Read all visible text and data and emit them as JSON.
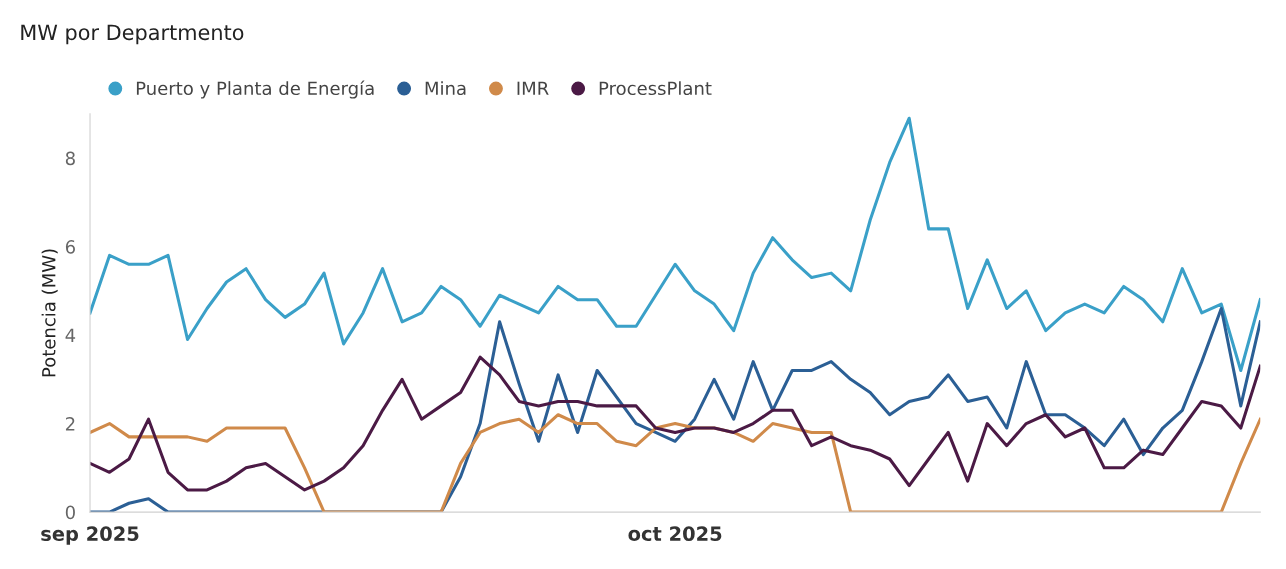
{
  "chart_data": {
    "type": "line",
    "title": "MW por Departmento",
    "ylabel": "Potencia (MW)",
    "x": [
      "2025-09-01",
      "2025-09-02",
      "2025-09-03",
      "2025-09-04",
      "2025-09-05",
      "2025-09-06",
      "2025-09-07",
      "2025-09-08",
      "2025-09-09",
      "2025-09-10",
      "2025-09-11",
      "2025-09-12",
      "2025-09-13",
      "2025-09-14",
      "2025-09-15",
      "2025-09-16",
      "2025-09-17",
      "2025-09-18",
      "2025-09-19",
      "2025-09-20",
      "2025-09-21",
      "2025-09-22",
      "2025-09-23",
      "2025-09-24",
      "2025-09-25",
      "2025-09-26",
      "2025-09-27",
      "2025-09-28",
      "2025-09-29",
      "2025-09-30",
      "2025-10-01",
      "2025-10-02",
      "2025-10-03",
      "2025-10-04",
      "2025-10-05",
      "2025-10-06",
      "2025-10-07",
      "2025-10-08",
      "2025-10-09",
      "2025-10-10",
      "2025-10-11",
      "2025-10-12",
      "2025-10-13",
      "2025-10-14",
      "2025-10-15",
      "2025-10-16",
      "2025-10-17",
      "2025-10-18",
      "2025-10-19",
      "2025-10-20",
      "2025-10-21",
      "2025-10-22",
      "2025-10-23",
      "2025-10-24",
      "2025-10-25",
      "2025-10-26",
      "2025-10-27",
      "2025-10-28",
      "2025-10-29",
      "2025-10-30",
      "2025-10-31"
    ],
    "series": [
      {
        "name": "Puerto y Planta de Energía",
        "color": "#3aa0c8",
        "values": [
          4.5,
          5.8,
          5.6,
          5.6,
          5.8,
          3.9,
          4.6,
          5.2,
          5.5,
          4.8,
          4.4,
          4.7,
          5.4,
          3.8,
          4.5,
          5.5,
          4.3,
          4.5,
          5.1,
          4.8,
          4.2,
          4.9,
          4.7,
          4.5,
          5.1,
          4.8,
          4.8,
          4.2,
          4.2,
          4.9,
          5.6,
          5.0,
          4.7,
          4.1,
          5.4,
          6.2,
          5.7,
          5.3,
          5.4,
          5.0,
          6.6,
          7.9,
          8.9,
          6.4,
          6.4,
          4.6,
          5.7,
          4.6,
          5.0,
          4.1,
          4.5,
          4.7,
          4.5,
          5.1,
          4.8,
          4.3,
          5.5,
          4.5,
          4.7,
          3.2,
          4.8
        ]
      },
      {
        "name": "Mina",
        "color": "#2b5f95",
        "values": [
          0.0,
          0.0,
          0.2,
          0.3,
          0.0,
          0.0,
          0.0,
          0.0,
          0.0,
          0.0,
          0.0,
          0.0,
          0.0,
          0.0,
          0.0,
          0.0,
          0.0,
          0.0,
          0.0,
          0.8,
          2.0,
          4.3,
          2.9,
          1.6,
          3.1,
          1.8,
          3.2,
          2.6,
          2.0,
          1.8,
          1.6,
          2.1,
          3.0,
          2.1,
          3.4,
          2.3,
          3.2,
          3.2,
          3.4,
          3.0,
          2.7,
          2.2,
          2.5,
          2.6,
          3.1,
          2.5,
          2.6,
          1.9,
          3.4,
          2.2,
          2.2,
          1.9,
          1.5,
          2.1,
          1.3,
          1.9,
          2.3,
          3.4,
          4.6,
          2.4,
          4.3
        ]
      },
      {
        "name": "IMR",
        "color": "#d08a4a",
        "values": [
          1.8,
          2.0,
          1.7,
          1.7,
          1.7,
          1.7,
          1.6,
          1.9,
          1.9,
          1.9,
          1.9,
          1.0,
          0.0,
          0.0,
          0.0,
          0.0,
          0.0,
          0.0,
          0.0,
          1.1,
          1.8,
          2.0,
          2.1,
          1.8,
          2.2,
          2.0,
          2.0,
          1.6,
          1.5,
          1.9,
          2.0,
          1.9,
          1.9,
          1.8,
          1.6,
          2.0,
          1.9,
          1.8,
          1.8,
          0.0,
          0.0,
          0.0,
          0.0,
          0.0,
          0.0,
          0.0,
          0.0,
          0.0,
          0.0,
          0.0,
          0.0,
          0.0,
          0.0,
          0.0,
          0.0,
          0.0,
          0.0,
          0.0,
          0.0,
          1.1,
          2.1
        ]
      },
      {
        "name": "ProcessPlant",
        "color": "#4b1a45",
        "values": [
          1.1,
          0.9,
          1.2,
          2.1,
          0.9,
          0.5,
          0.5,
          0.7,
          1.0,
          1.1,
          0.8,
          0.5,
          0.7,
          1.0,
          1.5,
          2.3,
          3.0,
          2.1,
          2.4,
          2.7,
          3.5,
          3.1,
          2.5,
          2.4,
          2.5,
          2.5,
          2.4,
          2.4,
          2.4,
          1.9,
          1.8,
          1.9,
          1.9,
          1.8,
          2.0,
          2.3,
          2.3,
          1.5,
          1.7,
          1.5,
          1.4,
          1.2,
          0.6,
          1.2,
          1.8,
          0.7,
          2.0,
          1.5,
          2.0,
          2.2,
          1.7,
          1.9,
          1.0,
          1.0,
          1.4,
          1.3,
          1.9,
          2.5,
          2.4,
          1.9,
          3.3
        ]
      }
    ],
    "xticks": [
      {
        "value": "2025-09-01",
        "label": "sep 2025"
      },
      {
        "value": "2025-10-01",
        "label": "oct 2025"
      }
    ],
    "xlim": [
      "2025-09-01",
      "2025-10-31"
    ],
    "ylim": [
      0,
      9
    ],
    "yticks": [
      0,
      2,
      4,
      6,
      8
    ],
    "grid": false,
    "legend": "top left",
    "marker": "none",
    "line_style": "solid"
  }
}
